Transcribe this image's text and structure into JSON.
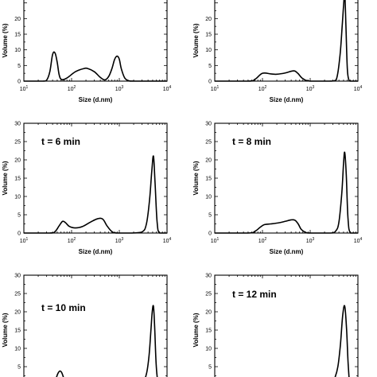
{
  "chart_data": [
    {
      "type": "line",
      "title": "",
      "xlabel": "Size (d.nm)",
      "ylabel": "Volume (%)",
      "xscale": "log",
      "xlim": [
        10,
        10000
      ],
      "ylim": [
        0,
        30
      ],
      "xticks": [
        "10",
        "100",
        "1000",
        "10000"
      ],
      "yticks": [
        "0",
        "5",
        "10",
        "15",
        "20"
      ],
      "series": [
        {
          "x": [
            10,
            25,
            30,
            35,
            40,
            45,
            50,
            55,
            62,
            80,
            120,
            180,
            220,
            300,
            400,
            500,
            600,
            700,
            800,
            900,
            1000,
            1100,
            1300,
            1600,
            2000,
            5000,
            10000
          ],
          "y": [
            0,
            0,
            0.3,
            3,
            8.5,
            9,
            6,
            2,
            0.5,
            1,
            3,
            4,
            4,
            3,
            1.2,
            0.4,
            1.5,
            4,
            7,
            8,
            7,
            4,
            1,
            0.1,
            0,
            0,
            0
          ]
        }
      ]
    },
    {
      "type": "line",
      "title": "",
      "xlabel": "Size (d.nm)",
      "ylabel": "Volume (%)",
      "xscale": "log",
      "xlim": [
        10,
        10000
      ],
      "ylim": [
        0,
        30
      ],
      "xticks": [
        "10",
        "100",
        "1000",
        "10000"
      ],
      "yticks": [
        "0",
        "5",
        "10",
        "15",
        "20"
      ],
      "series": [
        {
          "x": [
            10,
            50,
            70,
            100,
            150,
            200,
            300,
            450,
            550,
            700,
            1000,
            2500,
            3500,
            4200,
            4700,
            5000,
            5300,
            5600,
            6000,
            6500,
            7000,
            10000
          ],
          "y": [
            0,
            0,
            0.6,
            2.5,
            2.3,
            2.2,
            2.6,
            3.3,
            2.5,
            0.8,
            0,
            0,
            0.4,
            8,
            18,
            24,
            28,
            18,
            4,
            0.3,
            0,
            0
          ]
        }
      ]
    },
    {
      "type": "line",
      "title": "t = 6 min",
      "xlabel": "Size (d.nm)",
      "ylabel": "Volume (%)",
      "xscale": "log",
      "xlim": [
        10,
        10000
      ],
      "ylim": [
        0,
        30
      ],
      "xticks": [
        "10",
        "100",
        "1000",
        "10000"
      ],
      "yticks": [
        "0",
        "5",
        "10",
        "15",
        "20",
        "25",
        "30"
      ],
      "series": [
        {
          "x": [
            10,
            35,
            45,
            55,
            65,
            75,
            90,
            120,
            170,
            250,
            350,
            450,
            550,
            700,
            900,
            1800,
            3000,
            3700,
            4300,
            4800,
            5200,
            5600,
            6200,
            7000,
            10000
          ],
          "y": [
            0,
            0,
            0.4,
            2,
            3.2,
            2.8,
            1.8,
            1.4,
            1.8,
            3,
            3.9,
            3.8,
            2,
            0.4,
            0,
            0,
            0.3,
            2.5,
            9,
            17,
            21,
            14,
            3,
            0,
            0
          ]
        }
      ]
    },
    {
      "type": "line",
      "title": "t = 8 min",
      "xlabel": "Size (d.nm)",
      "ylabel": "Volume (%)",
      "xscale": "log",
      "xlim": [
        10,
        10000
      ],
      "ylim": [
        0,
        30
      ],
      "xticks": [
        "10",
        "100",
        "1000",
        "10000"
      ],
      "yticks": [
        "0",
        "5",
        "10",
        "15",
        "20",
        "25",
        "30"
      ],
      "series": [
        {
          "x": [
            10,
            50,
            70,
            90,
            110,
            150,
            220,
            300,
            400,
            480,
            560,
            650,
            800,
            1000,
            2600,
            3400,
            4000,
            4600,
            5000,
            5300,
            5700,
            6200,
            7000,
            10000
          ],
          "y": [
            0,
            0,
            0.5,
            1.6,
            2.3,
            2.5,
            2.8,
            3.2,
            3.6,
            3.5,
            2.5,
            1,
            0.2,
            0,
            0,
            0.5,
            3,
            11,
            19,
            22,
            16,
            4,
            0,
            0
          ]
        }
      ]
    },
    {
      "type": "line",
      "title": "t = 10 min",
      "xlabel": "",
      "ylabel": "Volume (%)",
      "xscale": "log",
      "xlim": [
        10,
        10000
      ],
      "ylim": [
        0,
        30
      ],
      "yticks": [
        "0",
        "5",
        "10",
        "15",
        "20",
        "25",
        "30"
      ],
      "series": [
        {
          "x": [
            10,
            40,
            45,
            48,
            52,
            57,
            62,
            68,
            75,
            90,
            140,
            160,
            170,
            180,
            200,
            260,
            500,
            1000,
            2000,
            3000,
            3700,
            4200,
            4600,
            4900,
            5200,
            5500,
            5900,
            6400,
            7000,
            10000
          ],
          "y": [
            0,
            0,
            0.8,
            2,
            3.2,
            3.8,
            3.4,
            2,
            0.7,
            0,
            0,
            0.7,
            1.1,
            1,
            0.7,
            0.5,
            0.5,
            0.5,
            0.3,
            0.5,
            3,
            8,
            15,
            20,
            21.5,
            16,
            6,
            1,
            0,
            0
          ]
        }
      ]
    },
    {
      "type": "line",
      "title": "t = 12 min",
      "xlabel": "",
      "ylabel": "Volume (%)",
      "xscale": "log",
      "xlim": [
        10,
        10000
      ],
      "ylim": [
        0,
        30
      ],
      "yticks": [
        "0",
        "5",
        "10",
        "15",
        "20",
        "25",
        "30"
      ],
      "series": [
        {
          "x": [
            10,
            2200,
            2800,
            3300,
            3800,
            4300,
            4800,
            5300,
            5800,
            6300,
            7000,
            10000
          ],
          "y": [
            0,
            0,
            0.3,
            2,
            5,
            11,
            19,
            21.5,
            15,
            5,
            0.5,
            0
          ]
        }
      ]
    }
  ]
}
